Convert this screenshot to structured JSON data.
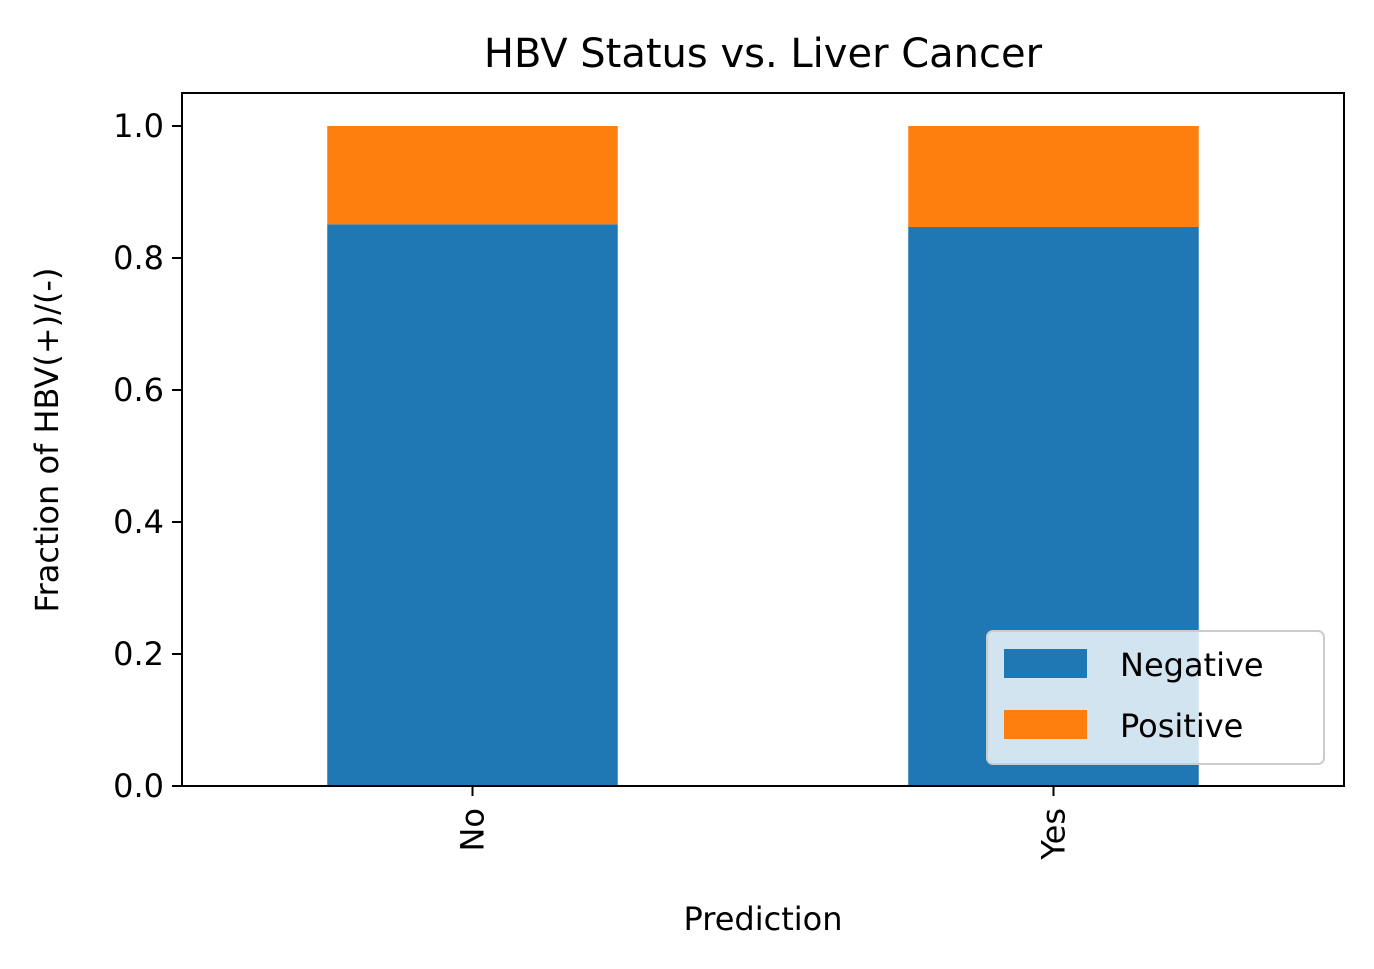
{
  "chart_data": {
    "type": "bar",
    "stacked": true,
    "title": "HBV Status vs. Liver Cancer",
    "xlabel": "Prediction",
    "ylabel": "Fraction of HBV(+)/(-)",
    "categories": [
      "No",
      "Yes"
    ],
    "series": [
      {
        "name": "Negative",
        "values": [
          0.851,
          0.847
        ],
        "color": "#1f77b4"
      },
      {
        "name": "Positive",
        "values": [
          0.149,
          0.153
        ],
        "color": "#ff7f0e"
      }
    ],
    "ylim": [
      0,
      1.05
    ],
    "yticks": [
      0.0,
      0.2,
      0.4,
      0.6,
      0.8,
      1.0
    ],
    "ytick_labels": [
      "0.0",
      "0.2",
      "0.4",
      "0.6",
      "0.8",
      "1.0"
    ],
    "grid": false,
    "legend_position": "lower-right",
    "xtick_rotation": "vertical"
  }
}
